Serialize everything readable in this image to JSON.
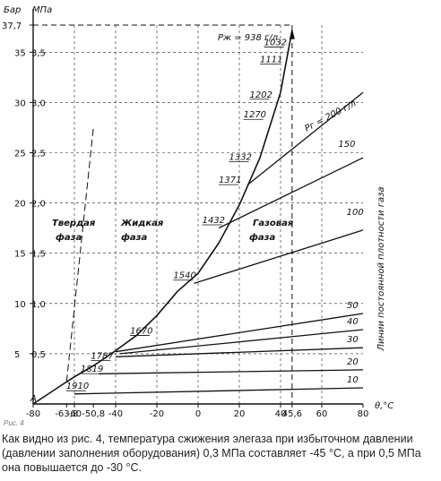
{
  "chart_data": {
    "type": "line",
    "xlabel": "θ,°C",
    "ylabel_bar": "Бар",
    "ylabel_mpa": "МПа",
    "xlim": [
      -80,
      80
    ],
    "ylim": [
      0,
      37.7
    ],
    "x_ticks": [
      "-80",
      "-63,8",
      "-60",
      "-50,8",
      "-40",
      "-20",
      "0",
      "20",
      "40",
      "45,6",
      "60",
      "80"
    ],
    "y_ticks_bar": [
      "5",
      "10",
      "15",
      "20",
      "25",
      "30",
      "35",
      "37,7"
    ],
    "y_ticks_mpa": [
      "0,5",
      "1,0",
      "1,5",
      "2,0",
      "2,5",
      "3,0",
      "3,5"
    ],
    "point_label": "А",
    "vertical_label": "Линии постоянной плотности газа",
    "phases": {
      "solid": [
        "Твердая",
        "фаза"
      ],
      "liquid": [
        "Жидкая",
        "фаза"
      ],
      "gas": [
        "Газовая",
        "фаза"
      ]
    },
    "critical_label": "Рж = 938 г/л",
    "density_label": "Рг = 200 г/л",
    "saturation_curve": [
      {
        "t": -63.8,
        "p": 2.2
      },
      {
        "t": -60,
        "p": 2.7
      },
      {
        "t": -55,
        "p": 3.3
      },
      {
        "t": -50,
        "p": 3.9
      },
      {
        "t": -45,
        "p": 4.6
      },
      {
        "t": -40,
        "p": 5.3
      },
      {
        "t": -30,
        "p": 6.8
      },
      {
        "t": -20,
        "p": 8.8
      },
      {
        "t": -10,
        "p": 11.2
      },
      {
        "t": 0,
        "p": 13.0
      },
      {
        "t": 10,
        "p": 16.0
      },
      {
        "t": 20,
        "p": 19.8
      },
      {
        "t": 30,
        "p": 24.5
      },
      {
        "t": 40,
        "p": 31.0
      },
      {
        "t": 45.6,
        "p": 37.2
      }
    ],
    "liquid_density_labels": [
      {
        "label": "1910",
        "t": -64,
        "p": 1.5
      },
      {
        "label": "1819",
        "t": -57,
        "p": 3.2
      },
      {
        "label": "1787",
        "t": -52,
        "p": 4.5
      },
      {
        "label": "1670",
        "t": -33,
        "p": 7.0
      },
      {
        "label": "1540",
        "t": -12,
        "p": 12.5
      },
      {
        "label": "1432",
        "t": 2,
        "p": 18.0
      },
      {
        "label": "1371",
        "t": 10,
        "p": 22.0
      },
      {
        "label": "1332",
        "t": 15,
        "p": 24.3
      },
      {
        "label": "1270",
        "t": 22,
        "p": 28.5
      },
      {
        "label": "1202",
        "t": 25,
        "p": 30.5
      },
      {
        "label": "1111",
        "t": 30,
        "p": 34.0
      },
      {
        "label": "1032",
        "t": 32,
        "p": 35.7
      }
    ],
    "isochores": [
      {
        "label": "10",
        "points": [
          {
            "t": -60,
            "p": 1.0
          },
          {
            "t": 80,
            "p": 1.6
          }
        ]
      },
      {
        "label": "20",
        "points": [
          {
            "t": -48,
            "p": 3.0
          },
          {
            "t": 80,
            "p": 3.4
          }
        ]
      },
      {
        "label": "30",
        "points": [
          {
            "t": -40,
            "p": 4.7
          },
          {
            "t": 80,
            "p": 5.6
          }
        ]
      },
      {
        "label": "40",
        "points": [
          {
            "t": -38,
            "p": 5.0
          },
          {
            "t": 80,
            "p": 7.4
          }
        ]
      },
      {
        "label": "50",
        "points": [
          {
            "t": -40,
            "p": 5.2
          },
          {
            "t": 80,
            "p": 9.0
          }
        ]
      },
      {
        "label": "100",
        "points": [
          {
            "t": -2,
            "p": 12.0
          },
          {
            "t": 80,
            "p": 17.3
          }
        ]
      },
      {
        "label": "150",
        "points": [
          {
            "t": 10,
            "p": 17.5
          },
          {
            "t": 80,
            "p": 24.5
          }
        ]
      },
      {
        "label": "200",
        "points": [
          {
            "t": 24,
            "p": 21.8
          },
          {
            "t": 80,
            "p": 31.0
          }
        ]
      }
    ],
    "sublimation_curve": [
      {
        "t": -80,
        "p": 0.0
      },
      {
        "t": -63.8,
        "p": 2.2
      }
    ],
    "melting_line": [
      {
        "t": -63.8,
        "p": 2.2
      },
      {
        "t": -50.8,
        "p": 27.5
      }
    ]
  },
  "caption": "Рис. 4",
  "body_text": "Как видно из рис. 4, температура сжижения элегаза при избыточном давлении (давлении заполнения оборудования) 0,3 МПа составляет -45 °С, а при 0,5 МПа она повышается до -30 °С."
}
